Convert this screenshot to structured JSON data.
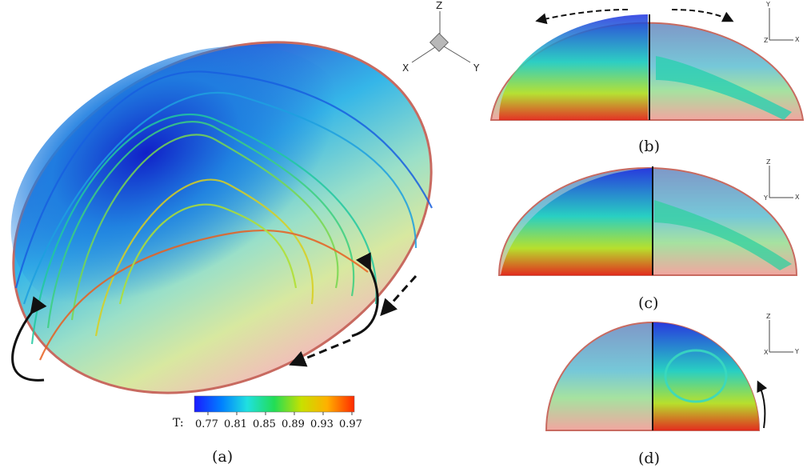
{
  "captions": {
    "a": "(a)",
    "b": "(b)",
    "c": "(c)",
    "d": "(d)"
  },
  "colorbar": {
    "title": "T:",
    "ticks": [
      "0.77",
      "0.81",
      "0.85",
      "0.89",
      "0.93",
      "0.97"
    ],
    "colors": [
      "#1a1aff",
      "#00a0ff",
      "#22e0e0",
      "#22dd55",
      "#c8e000",
      "#ffb000",
      "#ff2a00"
    ]
  },
  "triad_main": {
    "z": "Z",
    "x": "X",
    "y": "Y"
  },
  "triad_b": {
    "v": "Y",
    "h": "X",
    "o": "Z"
  },
  "triad_c": {
    "v": "Z",
    "h": "X",
    "o": "Y"
  },
  "triad_d": {
    "v": "Z",
    "h": "Y",
    "o": "X"
  }
}
